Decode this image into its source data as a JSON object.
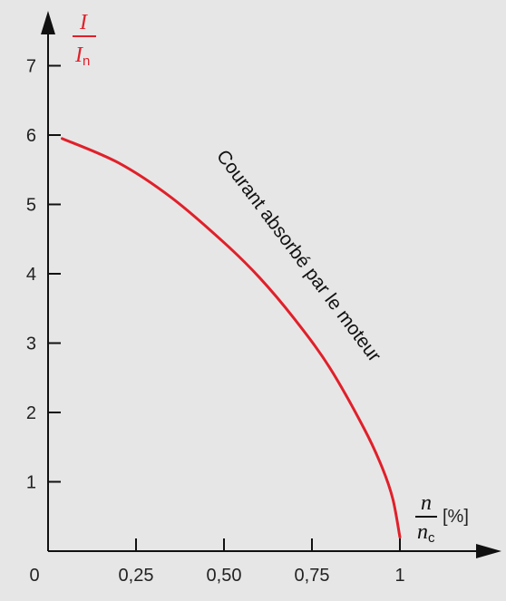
{
  "chart_data": {
    "type": "line",
    "title": "",
    "xlabel": {
      "numerator": "n",
      "denominator": "n",
      "denominator_subscript": "c",
      "unit": "[%]"
    },
    "ylabel": {
      "numerator": "I",
      "denominator": "I",
      "denominator_subscript": "n",
      "color": "#e0202a"
    },
    "xlim": [
      0,
      1.2
    ],
    "ylim": [
      0,
      7.5
    ],
    "x_ticks": [
      {
        "value": 0,
        "label": "0"
      },
      {
        "value": 0.25,
        "label": "0,25"
      },
      {
        "value": 0.5,
        "label": "0,50"
      },
      {
        "value": 0.75,
        "label": "0,75"
      },
      {
        "value": 1,
        "label": "1"
      }
    ],
    "y_ticks": [
      {
        "value": 1,
        "label": "1"
      },
      {
        "value": 2,
        "label": "2"
      },
      {
        "value": 3,
        "label": "3"
      },
      {
        "value": 4,
        "label": "4"
      },
      {
        "value": 5,
        "label": "5"
      },
      {
        "value": 6,
        "label": "6"
      },
      {
        "value": 7,
        "label": "7"
      }
    ],
    "grid": false,
    "series": [
      {
        "color": "#e0202a",
        "x": [
          0.04,
          0.2,
          0.35,
          0.5,
          0.6,
          0.7,
          0.8,
          0.9,
          0.95,
          0.98,
          1.0
        ],
        "y": [
          5.95,
          5.6,
          5.1,
          4.45,
          3.95,
          3.35,
          2.65,
          1.75,
          1.2,
          0.75,
          0.2
        ]
      }
    ],
    "annotation": {
      "text": "Courant absorbé par le moteur",
      "color": "#111111"
    },
    "colors": {
      "background": "#e6e6e6",
      "axis": "#111111",
      "curve": "#e0202a",
      "text": "#222222"
    }
  }
}
